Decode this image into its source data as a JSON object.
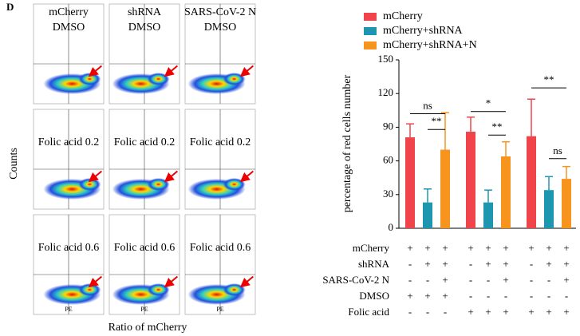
{
  "panel_label": "D",
  "flow": {
    "columns": [
      "mCherry",
      "shRNA",
      "SARS-CoV-2 N"
    ],
    "treatments": [
      "DMSO",
      "Folic acid 0.2",
      "Folic acid 0.6"
    ],
    "y_label": "Counts",
    "x_label": "Ratio of mCherry",
    "x_channel": "PE"
  },
  "chart_data": {
    "type": "bar",
    "y_label": "percentage of red cells number",
    "categories": [
      null,
      null,
      null
    ],
    "series": [
      {
        "name": "mCherry",
        "color": "#f0434a",
        "values": [
          81,
          86,
          82
        ],
        "errors": [
          12,
          13,
          33
        ]
      },
      {
        "name": "mCherry+shRNA",
        "color": "#1d97b0",
        "values": [
          23,
          23,
          34
        ],
        "errors": [
          12,
          11,
          12
        ]
      },
      {
        "name": "mCherry+shRNA+N",
        "color": "#f7941d",
        "values": [
          70,
          64,
          44
        ],
        "errors": [
          33,
          13,
          11
        ]
      }
    ],
    "ylim": [
      0,
      150
    ],
    "yticks": [
      0,
      30,
      60,
      90,
      120,
      150
    ],
    "annotations": [
      "ns",
      "**",
      "*",
      "**",
      "**",
      "ns"
    ],
    "conditions": [
      {
        "label": "mCherry",
        "signs": [
          "+",
          "+",
          "+",
          "+",
          "+",
          "+",
          "+",
          "+",
          "+"
        ]
      },
      {
        "label": "shRNA",
        "signs": [
          "-",
          "+",
          "+",
          "-",
          "+",
          "+",
          "-",
          "+",
          "+"
        ]
      },
      {
        "label": "SARS-CoV-2 N",
        "signs": [
          "-",
          "-",
          "+",
          "-",
          "-",
          "+",
          "-",
          "-",
          "+"
        ]
      },
      {
        "label": "DMSO",
        "signs": [
          "+",
          "+",
          "+",
          "-",
          "-",
          "-",
          "-",
          "-",
          "-"
        ]
      },
      {
        "label": "Folic acid",
        "signs": [
          "-",
          "-",
          "-",
          "+",
          "+",
          "+",
          "+",
          "+",
          "+"
        ]
      }
    ]
  }
}
